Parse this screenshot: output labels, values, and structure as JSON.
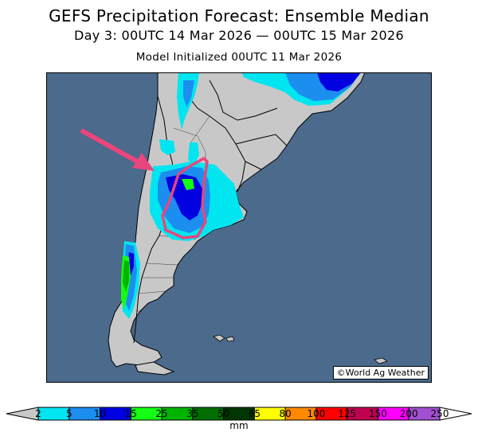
{
  "title": "GEFS Precipitation Forecast: Ensemble Median",
  "subtitle": "Day 3: 00UTC 14 Mar 2026 — 00UTC 15 Mar 2026",
  "model_init": "Model Initialized 00UTC 11 Mar 2026",
  "credit": "©World Ag Weather",
  "colorbar": {
    "unit": "mm",
    "ticks": [
      "2",
      "5",
      "10",
      "15",
      "25",
      "35",
      "50",
      "65",
      "80",
      "100",
      "125",
      "150",
      "200",
      "250"
    ],
    "colors": [
      "#00e5f0",
      "#1b8ef0",
      "#0000e0",
      "#14ff14",
      "#00b400",
      "#006e00",
      "#003700",
      "#ffff00",
      "#ff8a00",
      "#ff0000",
      "#c00050",
      "#ff00ff",
      "#a050d0"
    ]
  },
  "colors": {
    "ocean": "#4b6a8c",
    "land": "#c8c8c8",
    "highlight": "#e8467c"
  }
}
